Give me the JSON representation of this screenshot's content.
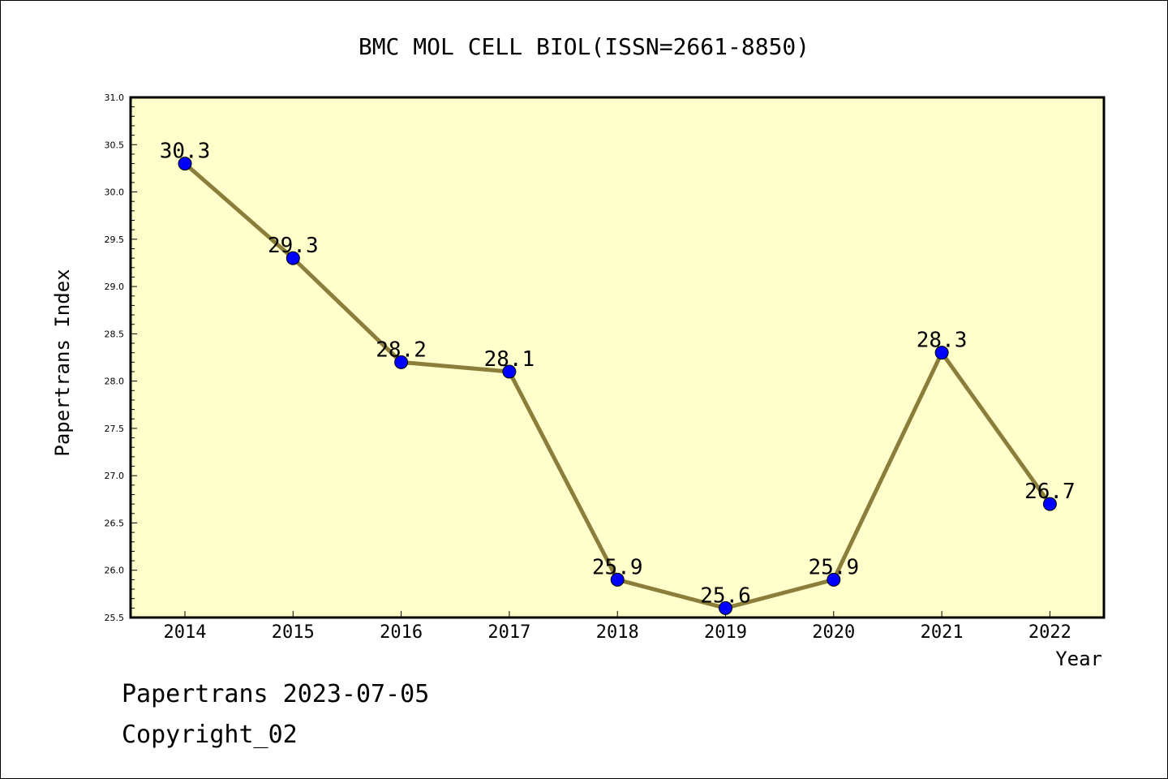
{
  "chart_data": {
    "type": "line",
    "title": "BMC MOL CELL BIOL(ISSN=2661-8850)",
    "xlabel": "Year",
    "ylabel": "Papertrans Index",
    "categories": [
      "2014",
      "2015",
      "2016",
      "2017",
      "2018",
      "2019",
      "2020",
      "2021",
      "2022"
    ],
    "values": [
      30.3,
      29.3,
      28.2,
      28.1,
      25.9,
      25.6,
      25.9,
      28.3,
      26.7
    ],
    "data_labels": [
      "30.3",
      "29.3",
      "28.2",
      "28.1",
      "25.9",
      "25.6",
      "25.9",
      "28.3",
      "26.7"
    ],
    "ylim": [
      25.5,
      31.0
    ],
    "yticks": [
      "25.5",
      "26.0",
      "26.5",
      "27.0",
      "27.5",
      "28.0",
      "28.5",
      "29.0",
      "29.5",
      "30.0",
      "30.5",
      "31.0"
    ],
    "grid": false,
    "colors": {
      "plot_background": "#ffffcc",
      "line": "#8b7d3a",
      "marker": "#0000ff"
    }
  },
  "footer": {
    "date_line": "Papertrans 2023-07-05",
    "copyright": "Copyright_02"
  }
}
